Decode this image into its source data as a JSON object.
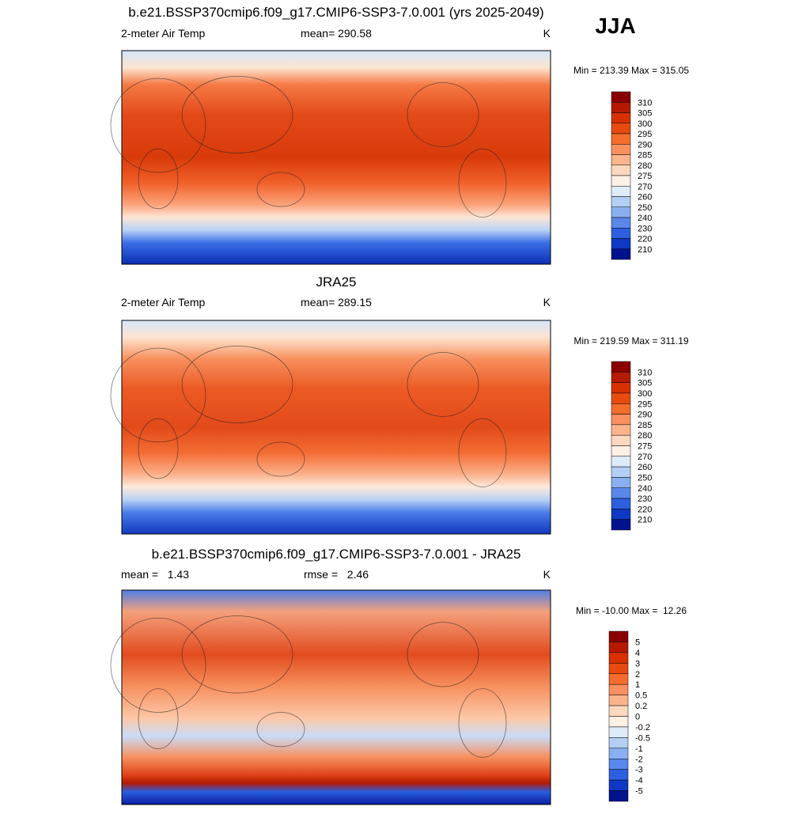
{
  "season": "JJA",
  "panels": [
    {
      "title": "b.e21.BSSP370cmip6.f09_g17.CMIP6-SSP3-7.0.001 (yrs 2025-2049)",
      "left": "2-meter Air Temp",
      "center": "mean= 290.58",
      "units": "K",
      "minmax": "Min = 213.39 Max = 315.05",
      "colorbar": {
        "levels": [
          310,
          305,
          300,
          295,
          290,
          285,
          280,
          275,
          270,
          260,
          250,
          240,
          230,
          220,
          210
        ]
      }
    },
    {
      "title": "JRA25",
      "left": "2-meter Air Temp",
      "center": "mean= 289.15",
      "units": "K",
      "minmax": "Min = 219.59 Max = 311.19",
      "colorbar": {
        "levels": [
          310,
          305,
          300,
          295,
          290,
          285,
          280,
          275,
          270,
          260,
          250,
          240,
          230,
          220,
          210
        ]
      }
    },
    {
      "title": "b.e21.BSSP370cmip6.f09_g17.CMIP6-SSP3-7.0.001 - JRA25",
      "left": "mean =   1.43",
      "center": "rmse =   2.46",
      "units": "K",
      "minmax": "Min = -10.00 Max =  12.26",
      "colorbar": {
        "levels": [
          5,
          4,
          3,
          2,
          1,
          0.5,
          0.2,
          0,
          -0.2,
          -0.5,
          -1,
          -2,
          -3,
          -4,
          -5
        ]
      }
    }
  ]
}
